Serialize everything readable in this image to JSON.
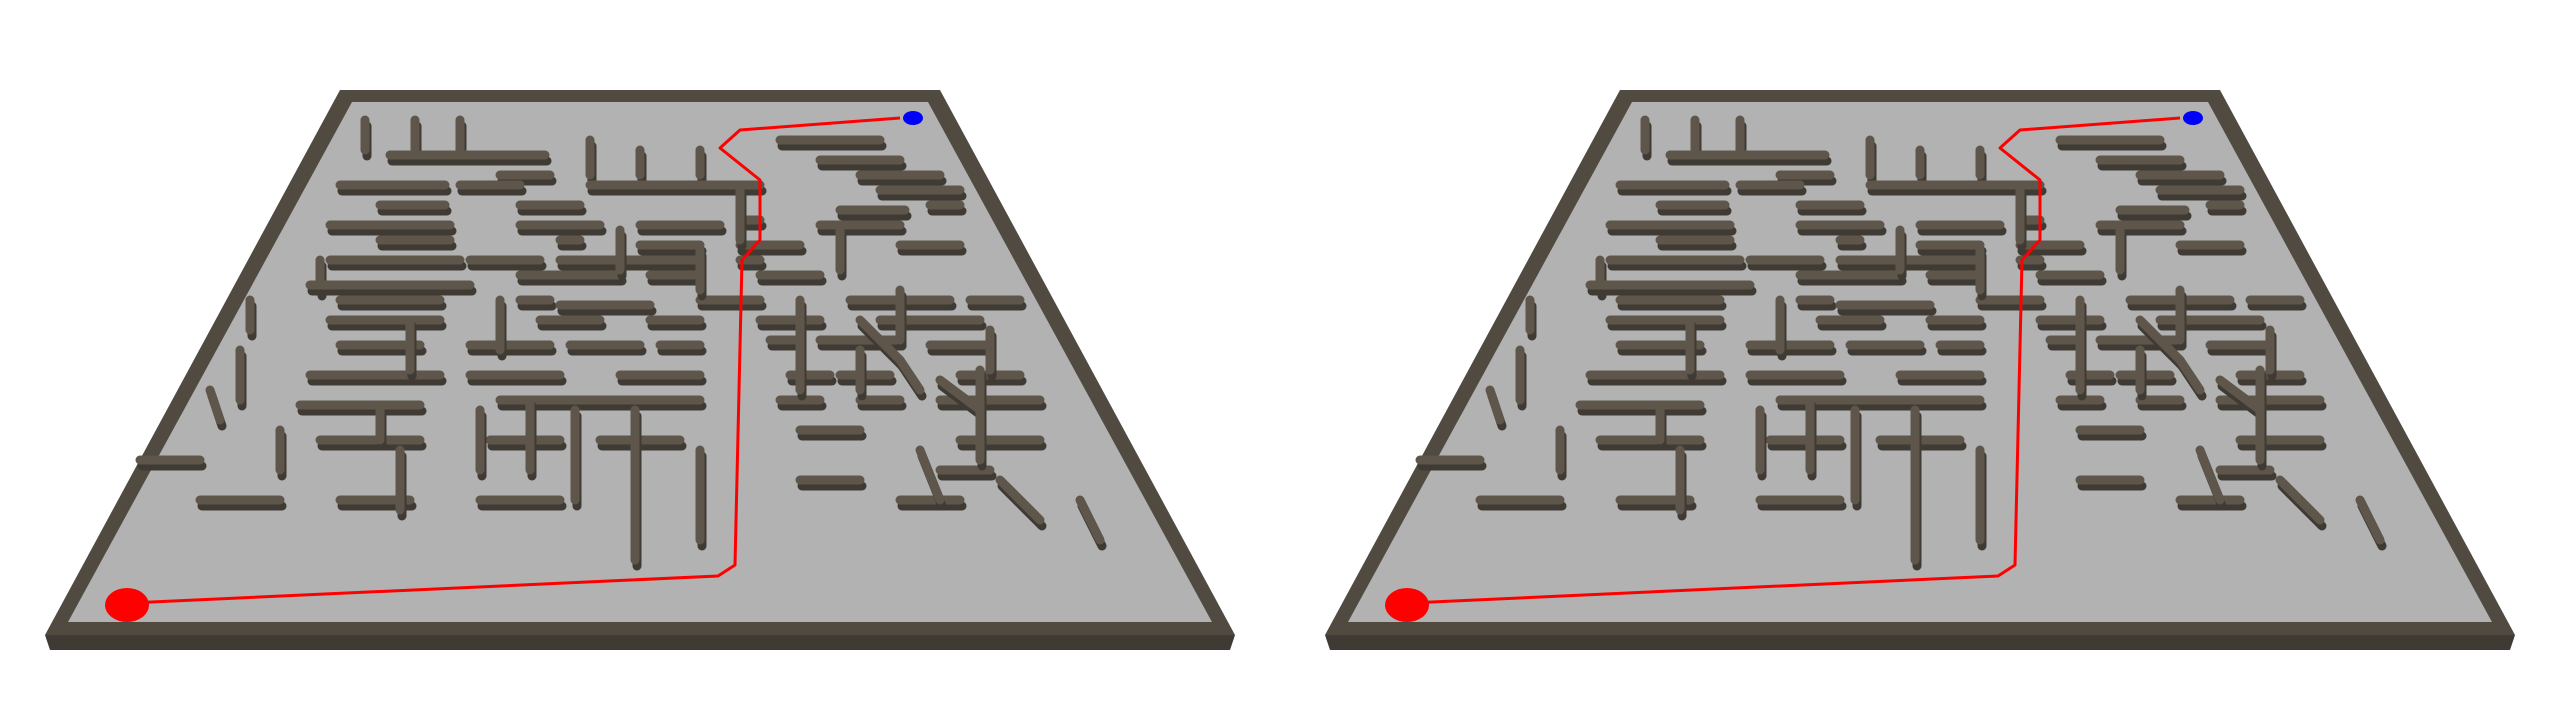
{
  "scene": {
    "description_kind": "stereo pair of 3D maze renders",
    "views": [
      "left",
      "right"
    ],
    "colors": {
      "background": "#ffffff",
      "floor": "#b2b2b2",
      "wall_top": "#5f564b",
      "wall_side": "#3f3a33",
      "border": "#514a41",
      "path": "#ff0000",
      "start_marker": "#ff0000",
      "goal_marker": "#0000ff"
    },
    "markers": {
      "start": {
        "name": "start",
        "color": "red"
      },
      "goal": {
        "name": "goal",
        "color": "blue"
      }
    },
    "path_present": true
  }
}
